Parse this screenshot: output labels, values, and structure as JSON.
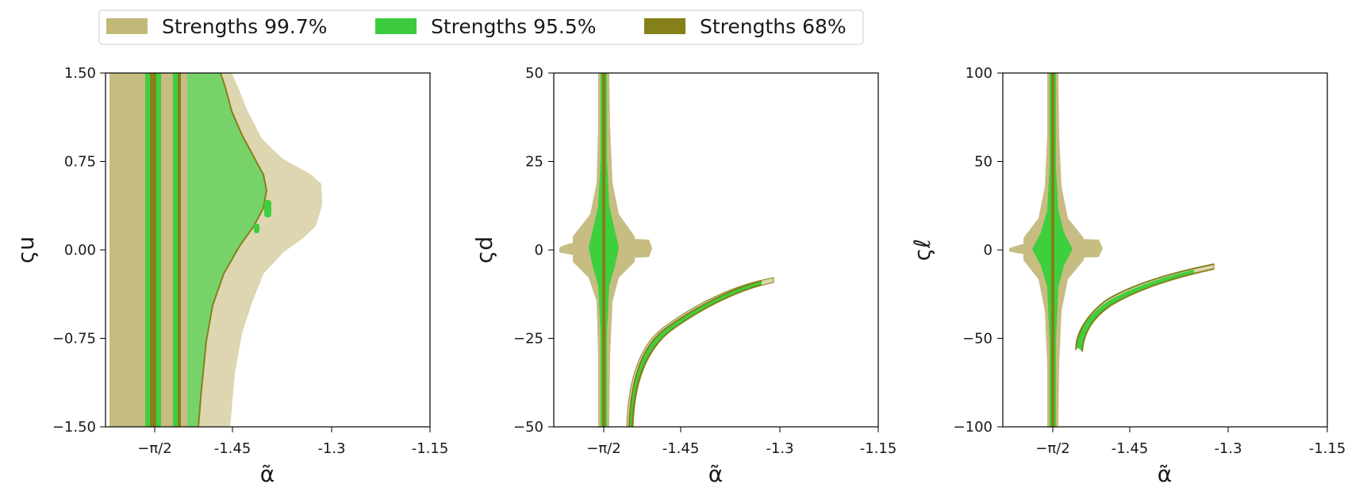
{
  "legend": {
    "entries": [
      {
        "label": "Strengths 99.7%",
        "color": "#c2b878"
      },
      {
        "label": "Strengths 95.5%",
        "color": "#3ccb3c"
      },
      {
        "label": "Strengths 68%",
        "color": "#858019"
      }
    ],
    "placement": "top-center"
  },
  "colors": {
    "region_997": "#c7bc82",
    "region_997_light": "#ddd6b1",
    "region_955": "#3ecf3e",
    "region_955_light": "#78d26a",
    "region_68": "#858019"
  },
  "chart_data": [
    {
      "type": "contour",
      "xlabel": "α̃",
      "ylabel": "ςu",
      "xlim": [
        -1.67,
        -1.15
      ],
      "ylim": [
        -1.5,
        1.5
      ],
      "x_ticks": [
        {
          "value": -1.5708,
          "label": "−π/2"
        },
        {
          "value": -1.45,
          "label": "-1.45"
        },
        {
          "value": -1.3,
          "label": "-1.3"
        },
        {
          "value": -1.15,
          "label": "-1.15"
        }
      ],
      "y_ticks": [
        {
          "value": 1.5,
          "label": "1.50"
        },
        {
          "value": 0.75,
          "label": "0.75"
        },
        {
          "value": 0.0,
          "label": "0.00"
        },
        {
          "value": -0.75,
          "label": "−0.75"
        },
        {
          "value": -1.5,
          "label": "−1.50"
        }
      ],
      "regions": [
        {
          "level": "99.7%",
          "x_range": [
            -1.665,
            -1.31
          ],
          "y_range": [
            -1.5,
            1.5
          ],
          "tip": [
            -1.31,
            0.45
          ]
        },
        {
          "level": "95.5%",
          "x_range": [
            -1.64,
            -1.385
          ],
          "y_range": [
            -1.5,
            1.5
          ],
          "tip": [
            -1.385,
            0.35
          ]
        },
        {
          "level": "68%",
          "x_range": [
            -1.585,
            -1.395
          ],
          "y_range": [
            -1.5,
            1.5
          ],
          "tip": [
            -1.395,
            0.35
          ]
        }
      ]
    },
    {
      "type": "contour",
      "xlabel": "α̃",
      "ylabel": "ςd",
      "xlim": [
        -1.67,
        -1.15
      ],
      "ylim": [
        -50,
        50
      ],
      "x_ticks": [
        {
          "value": -1.5708,
          "label": "−π/2"
        },
        {
          "value": -1.45,
          "label": "-1.45"
        },
        {
          "value": -1.3,
          "label": "-1.3"
        },
        {
          "value": -1.15,
          "label": "-1.15"
        }
      ],
      "y_ticks": [
        {
          "value": 50,
          "label": "50"
        },
        {
          "value": 25,
          "label": "25"
        },
        {
          "value": 0,
          "label": "0"
        },
        {
          "value": -25,
          "label": "−25"
        },
        {
          "value": -50,
          "label": "−50"
        }
      ],
      "regions": [
        {
          "level": "vertical band",
          "x_center": -1.5708,
          "y_range": [
            -50,
            50
          ]
        },
        {
          "level": "horizontal lobe",
          "x_range": [
            -1.665,
            -1.5
          ],
          "y_center": 0
        },
        {
          "level": "curved branch",
          "from": [
            -1.535,
            -50
          ],
          "to": [
            -1.33,
            -8
          ]
        }
      ]
    },
    {
      "type": "contour",
      "xlabel": "α̃",
      "ylabel": "ςℓ",
      "xlim": [
        -1.67,
        -1.15
      ],
      "ylim": [
        -100,
        100
      ],
      "x_ticks": [
        {
          "value": -1.5708,
          "label": "−π/2"
        },
        {
          "value": -1.45,
          "label": "-1.45"
        },
        {
          "value": -1.3,
          "label": "-1.3"
        },
        {
          "value": -1.15,
          "label": "-1.15"
        }
      ],
      "y_ticks": [
        {
          "value": 100,
          "label": "100"
        },
        {
          "value": 50,
          "label": "50"
        },
        {
          "value": 0,
          "label": "0"
        },
        {
          "value": -50,
          "label": "−50"
        },
        {
          "value": -100,
          "label": "−100"
        }
      ],
      "regions": [
        {
          "level": "vertical band",
          "x_center": -1.5708,
          "y_range": [
            -100,
            100
          ]
        },
        {
          "level": "horizontal lobe",
          "x_range": [
            -1.66,
            -1.5
          ],
          "y_center": 0
        },
        {
          "level": "curved branch",
          "from": [
            -1.535,
            -56
          ],
          "to": [
            -1.34,
            -8
          ]
        }
      ]
    }
  ]
}
